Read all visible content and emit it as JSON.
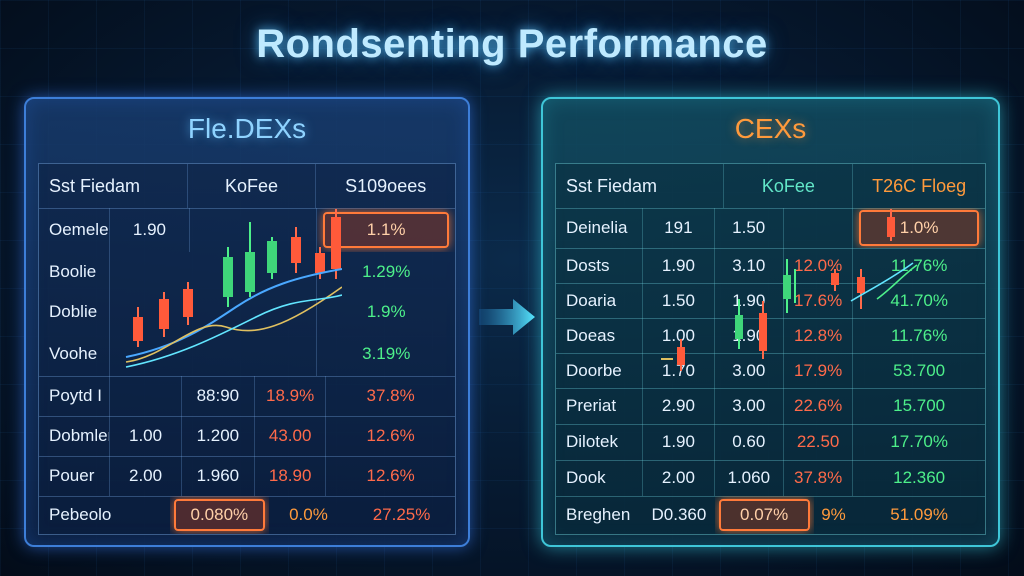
{
  "title": "Rondsenting Performance",
  "left_panel": {
    "title": "Fle.DEXs",
    "header": [
      "Sst Fiedam",
      "KoFee",
      "S109oees"
    ],
    "rows_top": [
      {
        "label": "Oemele",
        "val": "1.90",
        "pct": "1.1%",
        "pct_color": "highlight"
      },
      {
        "label": "Boolie",
        "val": "",
        "pct": "1.29%",
        "pct_color": "green"
      },
      {
        "label": "Doblie",
        "val": "",
        "pct": "1.9%",
        "pct_color": "green"
      },
      {
        "label": "Voohe",
        "val": "",
        "pct": "3.19%",
        "pct_color": "green"
      }
    ],
    "rows_bottom": [
      {
        "c1": "Poytd I",
        "c2": "",
        "c3": "88:90",
        "c4": "18.9%",
        "c5": "37.8%"
      },
      {
        "c1": "Dobmler",
        "c2": "1.00",
        "c3": "1.200",
        "c4": "43.00",
        "c5": "12.6%"
      },
      {
        "c1": "Pouer",
        "c2": "2.00",
        "c3": "1.960",
        "c4": "18.90",
        "c5": "12.6%"
      }
    ],
    "footer": {
      "c1": "Pebeolo",
      "c2": "0.080%",
      "c3": "0.0%",
      "c4": "27.25%"
    }
  },
  "right_panel": {
    "title": "CEXs",
    "header": [
      "Sst Fiedam",
      "KoFee",
      "T26C Floeg"
    ],
    "rows": [
      {
        "c1": "Deinelia",
        "c2": "191",
        "c3": "1.50",
        "c4": "",
        "c5": "1.0%"
      },
      {
        "c1": "Dosts",
        "c2": "1.90",
        "c3": "3.10",
        "c4": "12.0%",
        "c5": "11.76%"
      },
      {
        "c1": "Doaria",
        "c2": "1.50",
        "c3": "1.90",
        "c4": "17.6%",
        "c5": "41.70%"
      },
      {
        "c1": "Doeas",
        "c2": "1.00",
        "c3": "1.90",
        "c4": "12.8%",
        "c5": "11.76%"
      },
      {
        "c1": "Doorbe",
        "c2": "1.70",
        "c3": "3.00",
        "c4": "17.9%",
        "c5": "53.700"
      },
      {
        "c1": "Preriat",
        "c2": "2.90",
        "c3": "3.00",
        "c4": "22.6%",
        "c5": "15.700"
      },
      {
        "c1": "Dilotek",
        "c2": "1.90",
        "c3": "0.60",
        "c4": "22.50",
        "c5": "17.70%"
      },
      {
        "c1": "Dook",
        "c2": "2.00",
        "c3": "1.060",
        "c4": "37.8%",
        "c5": "12.360"
      }
    ],
    "footer": {
      "c1": "Breghen",
      "c2": "D0.360",
      "c3": "0.07%",
      "c4": "9%",
      "c5": "51.09%"
    }
  },
  "colors": {
    "green": "#4df08a",
    "red": "#ff6a4a",
    "orange": "#ff9a3c",
    "cyan": "#62e6ff"
  }
}
